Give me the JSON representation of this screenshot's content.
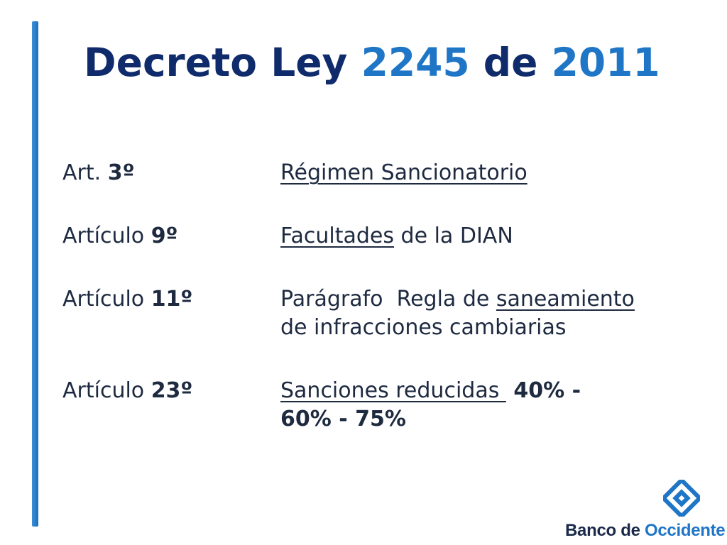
{
  "title": {
    "part1": "Decreto Ley ",
    "num1": "2245",
    "part2": " de ",
    "num2": "2011"
  },
  "rows": [
    {
      "label_prefix": "Art. ",
      "label_number": "3º",
      "desc": {
        "underlined": "Régimen Sancionatorio"
      }
    },
    {
      "label_prefix": "Artículo ",
      "label_number": "9º",
      "desc": {
        "underlined": "Facultades",
        "rest": " de la DIAN"
      }
    },
    {
      "label_prefix": "Artículo ",
      "label_number": "11º",
      "desc": {
        "line1_plain": "Parágrafo  Regla de ",
        "line1_underlined": "saneamiento",
        "line2": "de infracciones cambiarias"
      }
    },
    {
      "label_prefix": "Artículo ",
      "label_number": "23º",
      "desc": {
        "underlined": "Sanciones reducidas ",
        "line1_bold": " 40% -",
        "line2_bold": "60% - 75%"
      }
    }
  ],
  "logo": {
    "text_part1": "Banco de ",
    "text_part2": "Occidente",
    "icon": "diamond-logo-icon",
    "color_primary": "#1f75c6",
    "color_dark": "#1b2a4a"
  },
  "colors": {
    "title": "#0f2b6b",
    "title_numbers": "#1f75c6",
    "accent_bar": "#2b80cf",
    "body_text": "#1e2a40"
  }
}
